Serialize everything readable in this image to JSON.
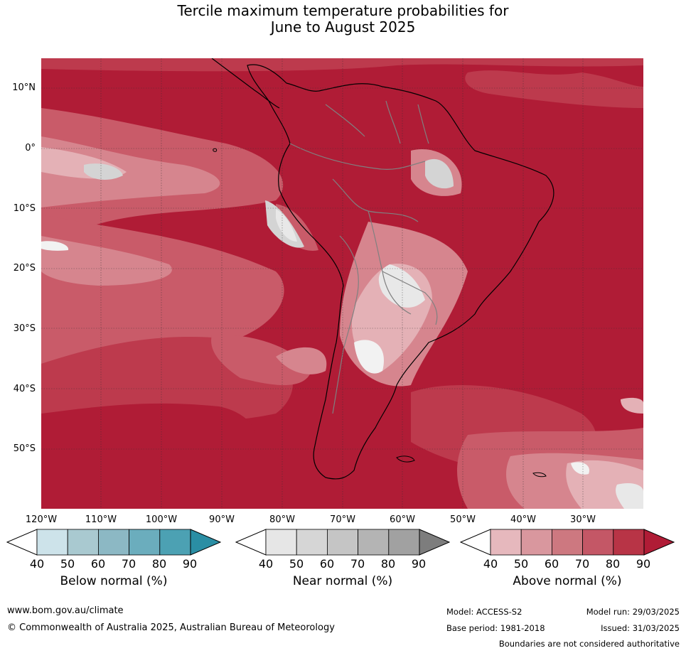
{
  "title_line1": "Tercile maximum temperature probabilities for",
  "title_line2": "June to August 2025",
  "lat_labels": [
    "10°N",
    "0°",
    "10°S",
    "20°S",
    "30°S",
    "40°S",
    "50°S"
  ],
  "lon_labels": [
    "120°W",
    "110°W",
    "100°W",
    "90°W",
    "80°W",
    "70°W",
    "60°W",
    "50°W",
    "40°W",
    "30°W"
  ],
  "colorbars": [
    {
      "label": "Below normal (%)",
      "ticks": [
        "40",
        "50",
        "60",
        "70",
        "80",
        "90"
      ],
      "colors": [
        "#ffffff",
        "#cde3ea",
        "#a9c9d0",
        "#8cb8c4",
        "#6badbd",
        "#4ca1b3",
        "#2a8ea4"
      ]
    },
    {
      "label": "Near normal (%)",
      "ticks": [
        "40",
        "50",
        "60",
        "70",
        "80",
        "90"
      ],
      "colors": [
        "#ffffff",
        "#e6e6e6",
        "#d6d6d6",
        "#c5c5c5",
        "#b4b4b4",
        "#a1a1a1",
        "#7d7d7d"
      ]
    },
    {
      "label": "Above normal (%)",
      "ticks": [
        "40",
        "50",
        "60",
        "70",
        "80",
        "90"
      ],
      "colors": [
        "#ffffff",
        "#e6b8bd",
        "#d9979e",
        "#cd7880",
        "#c45766",
        "#b83446",
        "#b01c36"
      ]
    }
  ],
  "footer": {
    "website": "www.bom.gov.au/climate",
    "copyright": "© Commonwealth of Australia 2025, Australian Bureau of Meteorology",
    "model": "Model: ACCESS-S2",
    "base_period": "Base period: 1981-2018",
    "model_run": "Model run: 29/03/2025",
    "issued": "Issued: 31/03/2025",
    "disclaimer": "Boundaries are not considered authoritative"
  },
  "map_colors": {
    "above_90": "#b01c36",
    "above_80": "#bd3a4d",
    "above_70": "#c95b69",
    "above_60": "#d6858e",
    "above_50": "#e4b1b6",
    "near": "#d4d4d4",
    "coast": "#000000",
    "border": "#808080"
  }
}
